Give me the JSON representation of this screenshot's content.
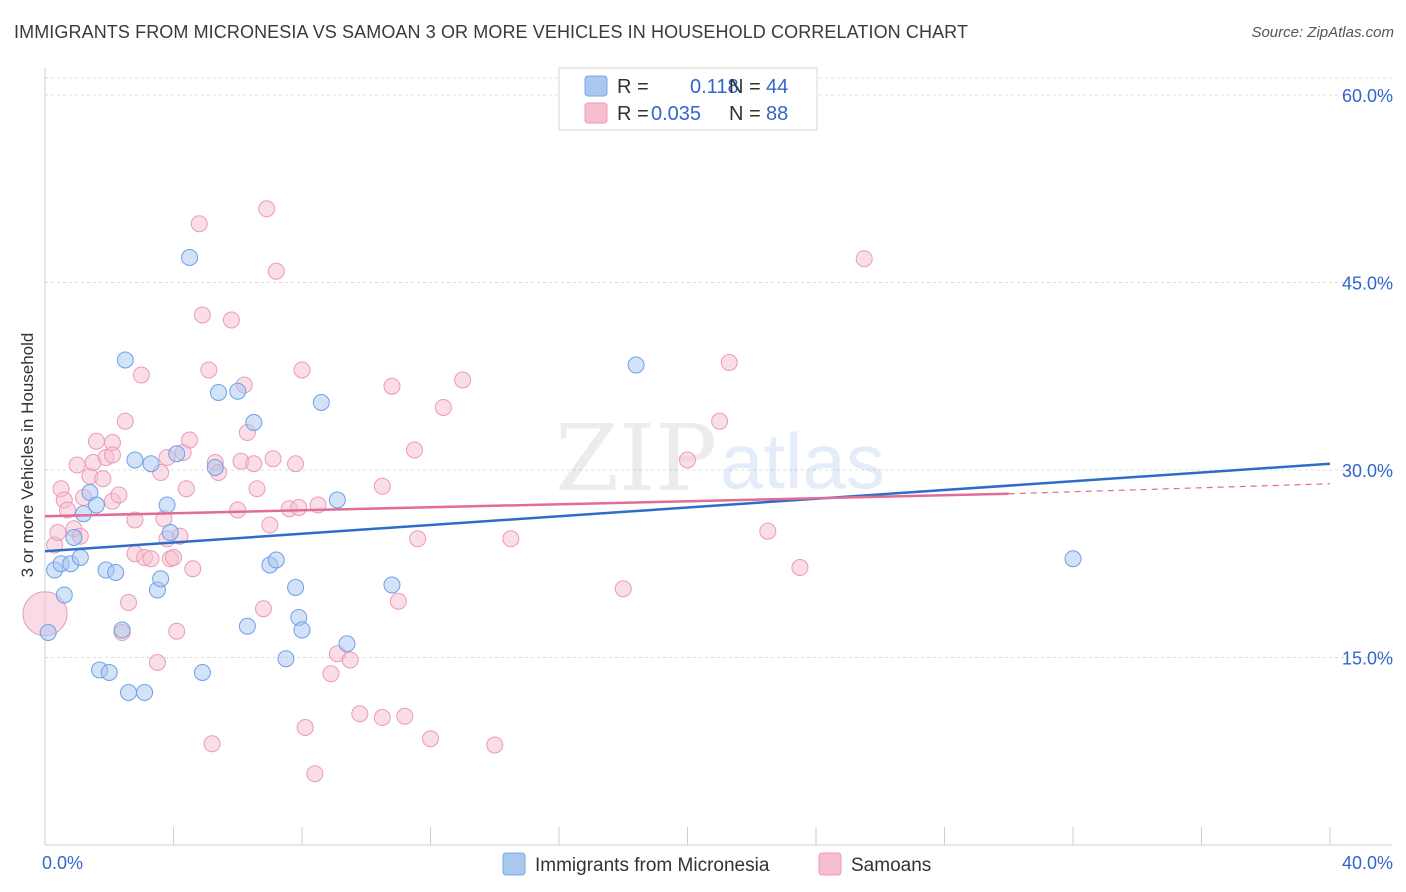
{
  "title": "IMMIGRANTS FROM MICRONESIA VS SAMOAN 3 OR MORE VEHICLES IN HOUSEHOLD CORRELATION CHART",
  "source": "Source: ZipAtlas.com",
  "watermark": {
    "zip": "ZIP",
    "atlas": "atlas"
  },
  "legend": {
    "rows": [
      {
        "r_label": "R =",
        "r_value": "0.118",
        "n_label": "N =",
        "n_value": "44",
        "color": "#a8c8f0",
        "border": "#7aa8e0"
      },
      {
        "r_label": "R =",
        "r_value": "0.035",
        "n_label": "N =",
        "n_value": "88",
        "color": "#f6bdd0",
        "border": "#ee9ab8"
      }
    ]
  },
  "bottom_legend": [
    {
      "label": "Immigrants from Micronesia",
      "color": "#a8c8f0",
      "border": "#7aa8e0"
    },
    {
      "label": "Samoans",
      "color": "#f6bdd0",
      "border": "#ee9ab8"
    }
  ],
  "chart_data": {
    "type": "scatter",
    "title": "IMMIGRANTS FROM MICRONESIA VS SAMOAN 3 OR MORE VEHICLES IN HOUSEHOLD CORRELATION CHART",
    "xlabel": "",
    "ylabel": "3 or more Vehicles in Household",
    "xlim": [
      0,
      40
    ],
    "ylim": [
      0,
      62
    ],
    "x_tick_labels": [
      "0.0%",
      "40.0%"
    ],
    "y_ticks": [
      15,
      30,
      45,
      60
    ],
    "y_tick_labels": [
      "15.0%",
      "30.0%",
      "45.0%",
      "60.0%"
    ],
    "grid": true,
    "legend_position": "top-center",
    "series": [
      {
        "name": "Immigrants from Micronesia",
        "color": "#6fa0e8",
        "fill": "#a8c8f0",
        "line_color": "#2f6cc8",
        "trend": {
          "x": [
            0,
            40
          ],
          "y": [
            23.5,
            30.5
          ]
        },
        "points": [
          [
            0.1,
            17.0
          ],
          [
            0.3,
            22.0
          ],
          [
            0.5,
            22.5
          ],
          [
            0.6,
            20.0
          ],
          [
            0.8,
            22.5
          ],
          [
            0.9,
            24.6
          ],
          [
            1.1,
            23.0
          ],
          [
            1.2,
            26.5
          ],
          [
            1.4,
            28.2
          ],
          [
            1.6,
            27.2
          ],
          [
            1.7,
            14.0
          ],
          [
            2.0,
            13.8
          ],
          [
            1.9,
            22.0
          ],
          [
            2.2,
            21.8
          ],
          [
            2.4,
            17.2
          ],
          [
            2.5,
            38.8
          ],
          [
            2.6,
            12.2
          ],
          [
            2.8,
            30.8
          ],
          [
            3.1,
            12.2
          ],
          [
            3.3,
            30.5
          ],
          [
            3.5,
            20.4
          ],
          [
            3.6,
            21.3
          ],
          [
            3.8,
            27.2
          ],
          [
            3.9,
            25.0
          ],
          [
            4.1,
            31.3
          ],
          [
            4.5,
            47.0
          ],
          [
            4.9,
            13.8
          ],
          [
            5.3,
            30.2
          ],
          [
            5.4,
            36.2
          ],
          [
            6.0,
            36.3
          ],
          [
            6.3,
            17.5
          ],
          [
            6.5,
            33.8
          ],
          [
            7.0,
            22.4
          ],
          [
            7.2,
            22.8
          ],
          [
            7.5,
            14.9
          ],
          [
            7.8,
            20.6
          ],
          [
            7.9,
            18.2
          ],
          [
            8.0,
            17.2
          ],
          [
            8.6,
            35.4
          ],
          [
            9.1,
            27.6
          ],
          [
            9.4,
            16.1
          ],
          [
            10.8,
            20.8
          ],
          [
            18.4,
            38.4
          ],
          [
            32.0,
            22.9
          ]
        ]
      },
      {
        "name": "Samoans",
        "color": "#ee9ab8",
        "fill": "#f6bdd0",
        "line_color": "#e06c98",
        "trend": {
          "x": [
            0,
            30
          ],
          "y": [
            26.3,
            28.1
          ]
        },
        "trend_dashed": {
          "x": [
            30,
            40
          ],
          "y": [
            28.1,
            28.9
          ]
        },
        "points": [
          [
            0.0,
            18.5
          ],
          [
            0.3,
            24.0
          ],
          [
            0.4,
            25.0
          ],
          [
            0.5,
            28.5
          ],
          [
            0.6,
            27.6
          ],
          [
            0.7,
            26.8
          ],
          [
            0.9,
            25.3
          ],
          [
            1.1,
            24.7
          ],
          [
            1.2,
            27.8
          ],
          [
            1.4,
            29.5
          ],
          [
            1.5,
            30.6
          ],
          [
            1.6,
            32.3
          ],
          [
            1.8,
            29.3
          ],
          [
            1.9,
            31.0
          ],
          [
            2.1,
            27.5
          ],
          [
            2.1,
            32.2
          ],
          [
            2.3,
            28.0
          ],
          [
            2.4,
            17.0
          ],
          [
            2.5,
            33.9
          ],
          [
            2.6,
            19.4
          ],
          [
            2.8,
            23.3
          ],
          [
            2.8,
            26.0
          ],
          [
            3.0,
            37.6
          ],
          [
            3.1,
            23.0
          ],
          [
            3.3,
            22.9
          ],
          [
            3.5,
            14.6
          ],
          [
            3.6,
            29.8
          ],
          [
            3.7,
            26.1
          ],
          [
            3.8,
            24.5
          ],
          [
            3.9,
            22.9
          ],
          [
            4.0,
            23.0
          ],
          [
            4.1,
            17.1
          ],
          [
            4.2,
            24.7
          ],
          [
            4.3,
            31.4
          ],
          [
            4.4,
            28.5
          ],
          [
            4.5,
            32.4
          ],
          [
            4.6,
            22.1
          ],
          [
            4.8,
            49.7
          ],
          [
            4.9,
            42.4
          ],
          [
            5.1,
            38.0
          ],
          [
            5.2,
            8.1
          ],
          [
            5.3,
            30.6
          ],
          [
            5.4,
            29.8
          ],
          [
            5.8,
            42.0
          ],
          [
            6.0,
            26.8
          ],
          [
            6.1,
            30.7
          ],
          [
            6.2,
            36.8
          ],
          [
            6.3,
            33.0
          ],
          [
            6.6,
            28.5
          ],
          [
            6.8,
            18.9
          ],
          [
            6.9,
            50.9
          ],
          [
            7.0,
            25.6
          ],
          [
            7.1,
            30.9
          ],
          [
            7.2,
            45.9
          ],
          [
            7.6,
            26.9
          ],
          [
            7.8,
            30.5
          ],
          [
            7.9,
            27.0
          ],
          [
            8.0,
            38.0
          ],
          [
            8.1,
            9.4
          ],
          [
            8.4,
            5.7
          ],
          [
            8.5,
            27.2
          ],
          [
            8.9,
            13.7
          ],
          [
            9.1,
            15.3
          ],
          [
            9.5,
            14.8
          ],
          [
            9.8,
            10.5
          ],
          [
            10.5,
            28.7
          ],
          [
            10.5,
            10.2
          ],
          [
            10.8,
            36.7
          ],
          [
            11.0,
            19.5
          ],
          [
            11.2,
            10.3
          ],
          [
            11.5,
            31.6
          ],
          [
            11.6,
            24.5
          ],
          [
            12.0,
            8.5
          ],
          [
            12.4,
            35.0
          ],
          [
            13.0,
            37.2
          ],
          [
            14.0,
            8.0
          ],
          [
            14.5,
            24.5
          ],
          [
            18.0,
            20.5
          ],
          [
            20.0,
            30.8
          ],
          [
            21.0,
            33.9
          ],
          [
            21.3,
            38.6
          ],
          [
            22.5,
            25.1
          ],
          [
            23.5,
            22.2
          ],
          [
            25.5,
            46.9
          ],
          [
            2.1,
            31.2
          ],
          [
            6.5,
            30.5
          ],
          [
            1.0,
            30.4
          ],
          [
            3.8,
            31.0
          ]
        ]
      }
    ]
  }
}
